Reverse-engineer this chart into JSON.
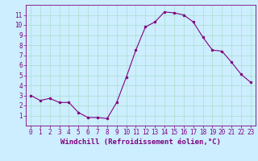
{
  "x": [
    0,
    1,
    2,
    3,
    4,
    5,
    6,
    7,
    8,
    9,
    10,
    11,
    12,
    13,
    14,
    15,
    16,
    17,
    18,
    19,
    20,
    21,
    22,
    23
  ],
  "y": [
    3.0,
    2.5,
    2.7,
    2.3,
    2.3,
    1.3,
    0.8,
    0.8,
    0.7,
    2.3,
    4.8,
    7.5,
    9.8,
    10.3,
    11.3,
    11.2,
    11.0,
    10.3,
    8.8,
    7.5,
    7.4,
    6.3,
    5.1,
    4.3
  ],
  "line_color": "#800080",
  "marker": "o",
  "marker_size": 2.0,
  "bg_color": "#cceeff",
  "grid_color": "#aaddcc",
  "xlabel": "Windchill (Refroidissement éolien,°C)",
  "ylim": [
    0,
    12
  ],
  "xlim_min": -0.5,
  "xlim_max": 23.5,
  "yticks": [
    1,
    2,
    3,
    4,
    5,
    6,
    7,
    8,
    9,
    10,
    11
  ],
  "xticks": [
    0,
    1,
    2,
    3,
    4,
    5,
    6,
    7,
    8,
    9,
    10,
    11,
    12,
    13,
    14,
    15,
    16,
    17,
    18,
    19,
    20,
    21,
    22,
    23
  ],
  "tick_color": "#800080",
  "label_color": "#800080",
  "tick_fontsize": 5.5,
  "xlabel_fontsize": 6.5,
  "linewidth": 0.8,
  "spine_color": "#800080",
  "grid_linewidth": 0.5
}
